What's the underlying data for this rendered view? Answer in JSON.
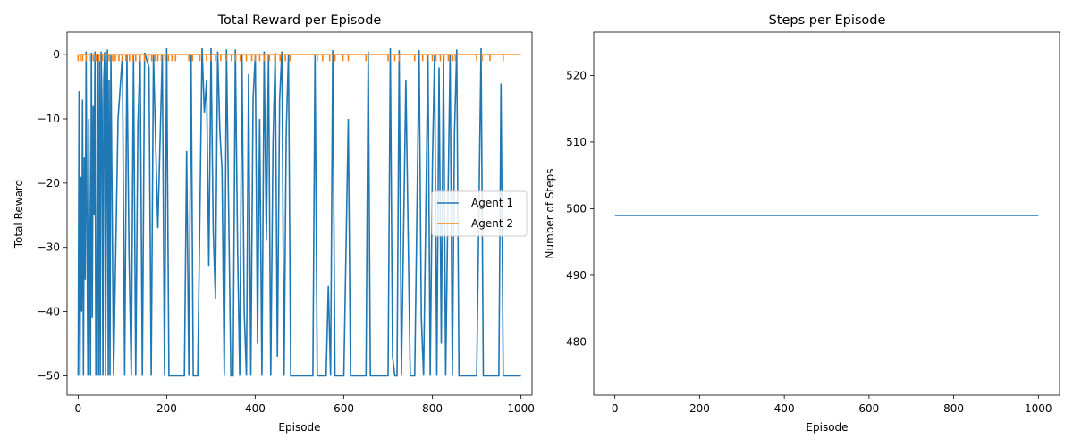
{
  "chart_data": [
    {
      "type": "line",
      "title": "Total Reward per Episode",
      "xlabel": "Episode",
      "ylabel": "Total Reward",
      "xlim": [
        -25,
        1025
      ],
      "ylim": [
        -53,
        3.5
      ],
      "xticks": [
        0,
        200,
        400,
        600,
        800,
        1000
      ],
      "yticks": [
        0,
        -10,
        -20,
        -30,
        -40,
        -50
      ],
      "grid": false,
      "legend": {
        "position": "center-right",
        "entries": [
          "Agent 1",
          "Agent 2"
        ]
      },
      "series": [
        {
          "name": "Agent 1",
          "color": "#1f77b4",
          "segments": [
            {
              "note": "dense region",
              "x": [
                0,
                2,
                4,
                6,
                8,
                10,
                12,
                14,
                16,
                18,
                20,
                22,
                24,
                26,
                28,
                30,
                32,
                34,
                36,
                38,
                40,
                42,
                44,
                46,
                48,
                50,
                52,
                54,
                56,
                58,
                60,
                62,
                64,
                66,
                68,
                70,
                72,
                74,
                80,
                90,
                100,
                105,
                110,
                115,
                120,
                125,
                130,
                135,
                140,
                145,
                150,
                160,
                165,
                170,
                180,
                190,
                195,
                200,
                205,
                210
              ],
              "y": [
                -50,
                -5.7,
                -50,
                -19,
                -40,
                -7,
                -50,
                -16,
                -35,
                0.5,
                -27,
                -50,
                -10,
                -30,
                -50,
                0.3,
                -41,
                -8,
                -25,
                0.5,
                -50,
                -45,
                0.2,
                -50,
                -1,
                -50,
                0.5,
                -8,
                -50,
                -4,
                0.4,
                -50,
                -18,
                0.8,
                -50,
                -4,
                -50,
                0,
                -50,
                -10,
                0,
                -50,
                0,
                -31,
                -50,
                0,
                -50,
                -11,
                0,
                -50,
                0.3,
                -2,
                -50,
                0,
                -27,
                0,
                -50,
                1,
                -50,
                -50
              ]
            },
            {
              "note": "middle dense block",
              "x": [
                240,
                245,
                250,
                255,
                260,
                270,
                280,
                285,
                290,
                295,
                300,
                305,
                310,
                315,
                320,
                325,
                330,
                335,
                340,
                345,
                350,
                355,
                360,
                365,
                370,
                375,
                380,
                385,
                390,
                395,
                400,
                405,
                410,
                415,
                420,
                425,
                430,
                435,
                440,
                445,
                450,
                455,
                460,
                465,
                470,
                475,
                480
              ],
              "y": [
                -50,
                -15,
                -50,
                0,
                -50,
                -50,
                1,
                -9,
                -4,
                -33,
                1,
                -27,
                -38,
                0.5,
                -12,
                -18,
                -50,
                0.8,
                -25,
                -50,
                -50,
                0.8,
                -30,
                -50,
                0,
                -40,
                -50,
                -3,
                -50,
                -7,
                0,
                -45,
                -10,
                -50,
                0.5,
                -29,
                0,
                -50,
                -14,
                0.3,
                -47,
                -7,
                0.5,
                -50,
                -12,
                0,
                -50
              ]
            },
            {
              "note": "sparse region",
              "x": [
                500,
                530,
                535,
                540,
                560,
                565,
                570,
                575,
                580,
                600,
                610,
                615,
                620,
                650,
                655,
                660,
                700,
                705,
                710,
                715,
                720,
                725,
                730,
                740,
                750,
                760,
                770,
                775,
                780,
                790,
                795,
                800,
                805,
                810,
                815,
                820,
                825,
                830,
                835,
                840,
                845,
                850,
                855,
                860,
                900,
                910,
                915,
                920,
                950,
                955,
                960,
                1000
              ],
              "y": [
                -50,
                -50,
                0,
                -50,
                -50,
                -36,
                -50,
                0.7,
                -50,
                -50,
                -10,
                -50,
                -50,
                -50,
                0.5,
                -50,
                -50,
                1,
                -47,
                -50,
                -50,
                0.7,
                -50,
                -4,
                -50,
                -50,
                0.7,
                -41,
                -50,
                0,
                -50,
                -17,
                0,
                -50,
                -2,
                -45,
                0,
                -50,
                -24,
                0,
                -50,
                -12,
                0.8,
                -50,
                -50,
                1,
                -50,
                -50,
                -50,
                -4.5,
                -50,
                -50
              ]
            }
          ]
        },
        {
          "name": "Agent 2",
          "color": "#ff7f0e",
          "baseline": 0,
          "dip_value": -1,
          "dip_episodes": [
            0,
            5,
            10,
            18,
            25,
            34,
            40,
            47,
            55,
            62,
            70,
            78,
            84,
            92,
            100,
            108,
            116,
            124,
            130,
            140,
            150,
            158,
            166,
            174,
            180,
            188,
            196,
            204,
            212,
            220,
            250,
            258,
            275,
            290,
            300,
            310,
            322,
            334,
            346,
            356,
            366,
            380,
            392,
            400,
            410,
            420,
            432,
            444,
            456,
            468,
            478,
            540,
            552,
            568,
            580,
            598,
            610,
            650,
            700,
            715,
            725,
            760,
            778,
            788,
            800,
            808,
            818,
            826,
            836,
            846,
            852,
            900,
            912,
            930,
            960
          ]
        }
      ]
    },
    {
      "type": "line",
      "title": "Steps per Episode",
      "xlabel": "Episode",
      "ylabel": "Number of Steps",
      "xlim": [
        -50,
        1050
      ],
      "ylim": [
        472,
        526.5
      ],
      "xticks": [
        0,
        200,
        400,
        600,
        800,
        1000
      ],
      "yticks": [
        480,
        490,
        500,
        510,
        520
      ],
      "grid": false,
      "series": [
        {
          "color": "#1f77b4",
          "x": [
            0,
            1000
          ],
          "y": [
            499,
            499
          ]
        }
      ]
    }
  ]
}
